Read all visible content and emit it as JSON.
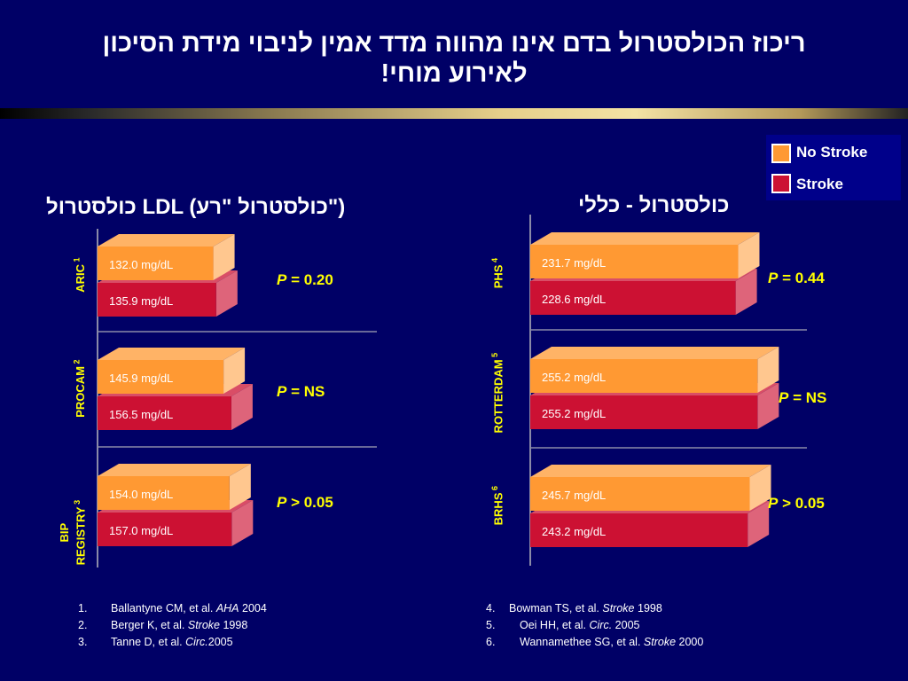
{
  "title": {
    "line1": "ריכוז הכולסטרול בדם אינו מהווה מדד אמין לניבוי מידת הסיכון",
    "line2": "לאירוע מוחי!"
  },
  "legend": [
    {
      "label": "No Stroke",
      "color": "#ff9933"
    },
    {
      "label": "Stroke",
      "color": "#cc1133"
    }
  ],
  "colors": {
    "no_stroke": "#ff9933",
    "stroke": "#cc1133",
    "text_yellow": "#ffff00",
    "background": "#000066"
  },
  "chart_data": [
    {
      "type": "bar",
      "title": "כולסטרול LDL (כולסטרול \"רע\")",
      "unit": "mg/dL",
      "categories": [
        "ARIC",
        "PROCAM",
        "BIP REGISTRY"
      ],
      "category_refs": [
        "1",
        "2",
        "3"
      ],
      "series": [
        {
          "name": "No Stroke",
          "values": [
            132.0,
            145.9,
            154.0
          ]
        },
        {
          "name": "Stroke",
          "values": [
            135.9,
            156.5,
            157.0
          ]
        }
      ],
      "p_values": [
        "= 0.20",
        "= NS",
        "> 0.05"
      ]
    },
    {
      "type": "bar",
      "title": "כולסטרול - כללי",
      "unit": "mg/dL",
      "categories": [
        "PHS",
        "ROTTERDAM",
        "BRHS"
      ],
      "category_refs": [
        "4",
        "5",
        "6"
      ],
      "series": [
        {
          "name": "No Stroke",
          "values": [
            231.7,
            255.2,
            245.7
          ]
        },
        {
          "name": "Stroke",
          "values": [
            228.6,
            255.2,
            243.2
          ]
        }
      ],
      "p_values": [
        "= 0.44",
        "= NS",
        "> 0.05"
      ]
    }
  ],
  "references_left": [
    {
      "num": "1.",
      "text": "Ballantyne CM, et al. ",
      "journal": "AHA",
      "year": " 2004"
    },
    {
      "num": "2.",
      "text": "Berger K, et al. ",
      "journal": "Stroke",
      "year": " 1998"
    },
    {
      "num": "3.",
      "text": "Tanne D, et al. ",
      "journal": "Circ.",
      "year": "2005"
    }
  ],
  "references_right": [
    {
      "num": "4.",
      "text": "Bowman TS, et al. ",
      "journal": "Stroke",
      "year": " 1998"
    },
    {
      "num": "5.",
      "text": "Oei HH, et al. ",
      "journal": "Circ.",
      "year": " 2005"
    },
    {
      "num": "6.",
      "text": "Wannamethee SG, et al. ",
      "journal": "Stroke",
      "year": " 2000"
    }
  ],
  "p_label": "P"
}
